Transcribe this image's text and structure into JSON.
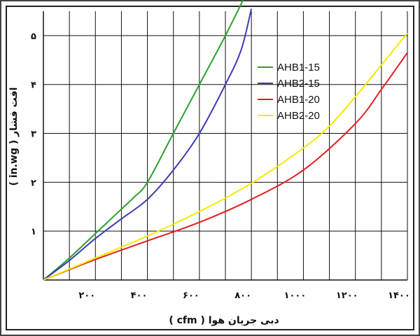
{
  "chart_data": {
    "type": "line",
    "xlabel": "دبی جریان هوا ( cfm )",
    "ylabel": "افت فشار ( in.wg )",
    "xlim": [
      0,
      1400
    ],
    "ylim": [
      0,
      5.5
    ],
    "xticks": [
      {
        "value": 200,
        "label": "۲۰۰"
      },
      {
        "value": 400,
        "label": "۴۰۰"
      },
      {
        "value": 600,
        "label": "۶۰۰"
      },
      {
        "value": 800,
        "label": "۸۰۰"
      },
      {
        "value": 1000,
        "label": "۱۰۰۰"
      },
      {
        "value": 1200,
        "label": "۱۲۰۰"
      },
      {
        "value": 1400,
        "label": "۱۴۰۰"
      }
    ],
    "yticks": [
      {
        "value": 1,
        "label": "۱"
      },
      {
        "value": 2,
        "label": "۲"
      },
      {
        "value": 3,
        "label": "۳"
      },
      {
        "value": 4,
        "label": "۴"
      },
      {
        "value": 5,
        "label": "۵"
      }
    ],
    "grid": true,
    "legend_position": "top-right",
    "series": [
      {
        "name": "AHB1-15",
        "color": "#2ca02c",
        "points": [
          [
            0,
            0
          ],
          [
            100,
            0.45
          ],
          [
            200,
            0.95
          ],
          [
            300,
            1.45
          ],
          [
            350,
            1.7
          ],
          [
            400,
            2.0
          ],
          [
            500,
            3.0
          ],
          [
            600,
            4.0
          ],
          [
            700,
            5.0
          ],
          [
            770,
            5.75
          ]
        ]
      },
      {
        "name": "AHB2-15",
        "color": "#3a3ab8",
        "points": [
          [
            0,
            0
          ],
          [
            100,
            0.4
          ],
          [
            200,
            0.85
          ],
          [
            300,
            1.25
          ],
          [
            400,
            1.65
          ],
          [
            500,
            2.25
          ],
          [
            600,
            3.0
          ],
          [
            700,
            4.0
          ],
          [
            760,
            4.7
          ],
          [
            800,
            5.55
          ]
        ]
      },
      {
        "name": "AHB1-20",
        "color": "#e02020",
        "points": [
          [
            0,
            0
          ],
          [
            200,
            0.42
          ],
          [
            400,
            0.8
          ],
          [
            600,
            1.18
          ],
          [
            800,
            1.65
          ],
          [
            1000,
            2.25
          ],
          [
            1200,
            3.2
          ],
          [
            1300,
            3.9
          ],
          [
            1400,
            4.65
          ]
        ]
      },
      {
        "name": "AHB2-20",
        "color": "#f2ea00",
        "points": [
          [
            0,
            0
          ],
          [
            200,
            0.45
          ],
          [
            400,
            0.9
          ],
          [
            600,
            1.4
          ],
          [
            800,
            1.98
          ],
          [
            1000,
            2.7
          ],
          [
            1100,
            3.15
          ],
          [
            1200,
            3.75
          ],
          [
            1300,
            4.4
          ],
          [
            1400,
            5.05
          ]
        ]
      }
    ]
  }
}
